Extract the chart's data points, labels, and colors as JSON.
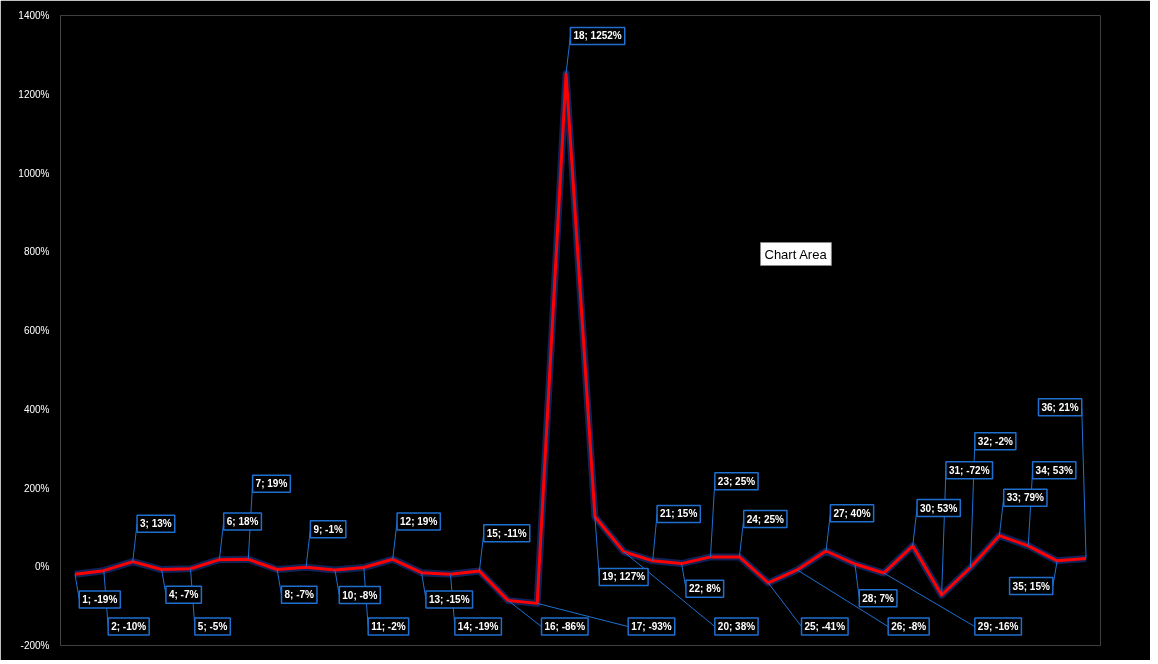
{
  "chart_data": {
    "type": "line",
    "categories": [
      null,
      null,
      null,
      null,
      null,
      null,
      null,
      null,
      null,
      null,
      null,
      null,
      null,
      null,
      null,
      null,
      null,
      null,
      null,
      null,
      null,
      null,
      null,
      null,
      null,
      null,
      null,
      null,
      null,
      null,
      null,
      null,
      null,
      null,
      null,
      null
    ],
    "series": [
      {
        "color": "#ff0000",
        "values": [
          -19,
          -10,
          13,
          -7,
          -5,
          18,
          19,
          -7,
          -1,
          -8,
          -2,
          19,
          -15,
          -19,
          -11,
          -86,
          -93,
          1252,
          127,
          38,
          15,
          8,
          25,
          25,
          -41,
          -8,
          40,
          7,
          -16,
          53,
          -72,
          -2,
          79,
          53,
          15,
          21
        ],
        "value_labels": [
          "1; -19%",
          "2; -10%",
          "3; 13%",
          "4; -7%",
          "5; -5%",
          "6; 18%",
          "7; 19%",
          "8; -7%",
          "9; -1%",
          "10; -8%",
          "11; -2%",
          "12; 19%",
          "13; -15%",
          "14; -19%",
          "15; -11%",
          "16; -86%",
          "17; -93%",
          "18; 1252%",
          "19; 127%",
          "20; 38%",
          "21; 15%",
          "22; 8%",
          "23; 25%",
          "24; 25%",
          "25; -41%",
          "26; -8%",
          "27; 40%",
          "28; 7%",
          "29; -16%",
          "30; 53%",
          "31; -72%",
          "32; -2%",
          "33; 79%",
          "34; 53%",
          "35; 15%",
          "36; 21%"
        ]
      }
    ],
    "ylim": [
      -200,
      1400
    ],
    "yticks": [
      {
        "value": -200,
        "label": "-200%"
      },
      {
        "value": 0,
        "label": "0%"
      },
      {
        "value": 200,
        "label": "200%"
      },
      {
        "value": 400,
        "label": "400%"
      },
      {
        "value": 600,
        "label": "600%"
      },
      {
        "value": 800,
        "label": "800%"
      },
      {
        "value": 1000,
        "label": "1000%"
      },
      {
        "value": 1200,
        "label": "1200%"
      },
      {
        "value": 1400,
        "label": "1400%"
      }
    ],
    "tick_labels": "y",
    "grid": false,
    "marker": "none",
    "line_style": "solid",
    "annotations": [
      "Chart Area"
    ]
  }
}
